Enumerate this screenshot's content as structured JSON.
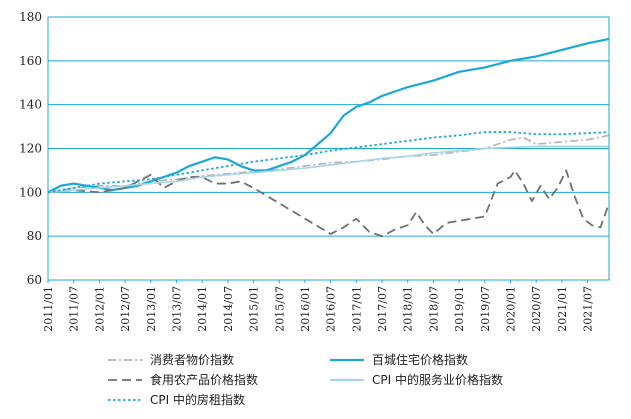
{
  "chart_data": {
    "type": "line",
    "title": "",
    "xlabel": "",
    "ylabel": "",
    "ylim": [
      60,
      180
    ],
    "yticks": [
      60,
      80,
      100,
      120,
      140,
      160,
      180
    ],
    "x_tick_labels": [
      "2011/01",
      "2011/07",
      "2012/01",
      "2012/07",
      "2013/01",
      "2013/07",
      "2014/01",
      "2014/07",
      "2015/01",
      "2015/07",
      "2016/01",
      "2016/07",
      "2017/01",
      "2017/07",
      "2018/01",
      "2018/07",
      "2019/01",
      "2019/07",
      "2020/01",
      "2020/07",
      "2021/01",
      "2021/07"
    ],
    "x_start": "2011/01",
    "x_end": "2021/12",
    "grid": "horizontal",
    "legend": "bottom",
    "series": [
      {
        "name": "消费者物价指数",
        "color": "#b3b3b3",
        "style": "dashdot",
        "points": [
          [
            "2011/01",
            100
          ],
          [
            "2011/07",
            102
          ],
          [
            "2012/01",
            103
          ],
          [
            "2012/07",
            103
          ],
          [
            "2013/01",
            105
          ],
          [
            "2013/07",
            106
          ],
          [
            "2014/01",
            107.5
          ],
          [
            "2014/07",
            108.5
          ],
          [
            "2015/01",
            109.5
          ],
          [
            "2015/07",
            110.5
          ],
          [
            "2016/01",
            112
          ],
          [
            "2016/07",
            113.5
          ],
          [
            "2017/01",
            114
          ],
          [
            "2017/07",
            115
          ],
          [
            "2018/01",
            116.5
          ],
          [
            "2018/07",
            117
          ],
          [
            "2019/01",
            118.5
          ],
          [
            "2019/07",
            120
          ],
          [
            "2020/01",
            124
          ],
          [
            "2020/04",
            125
          ],
          [
            "2020/07",
            122
          ],
          [
            "2021/01",
            123
          ],
          [
            "2021/07",
            124
          ],
          [
            "2021/12",
            126
          ]
        ]
      },
      {
        "name": "百城住宅价格指数",
        "color": "#1ba8d8",
        "style": "solid",
        "points": [
          [
            "2011/01",
            100
          ],
          [
            "2011/04",
            103
          ],
          [
            "2011/07",
            104
          ],
          [
            "2011/10",
            103
          ],
          [
            "2012/01",
            102
          ],
          [
            "2012/04",
            101
          ],
          [
            "2012/07",
            102
          ],
          [
            "2012/10",
            103
          ],
          [
            "2013/01",
            105
          ],
          [
            "2013/07",
            109
          ],
          [
            "2013/10",
            112
          ],
          [
            "2014/01",
            114
          ],
          [
            "2014/04",
            116
          ],
          [
            "2014/07",
            115
          ],
          [
            "2014/10",
            112
          ],
          [
            "2015/01",
            110
          ],
          [
            "2015/04",
            110
          ],
          [
            "2015/07",
            112
          ],
          [
            "2015/10",
            114
          ],
          [
            "2016/01",
            117
          ],
          [
            "2016/04",
            122
          ],
          [
            "2016/07",
            127
          ],
          [
            "2016/10",
            135
          ],
          [
            "2017/01",
            139
          ],
          [
            "2017/04",
            141
          ],
          [
            "2017/07",
            144
          ],
          [
            "2017/10",
            146
          ],
          [
            "2018/01",
            148
          ],
          [
            "2018/07",
            151
          ],
          [
            "2019/01",
            155
          ],
          [
            "2019/07",
            157
          ],
          [
            "2020/01",
            160
          ],
          [
            "2020/04",
            161
          ],
          [
            "2020/07",
            162
          ],
          [
            "2021/01",
            165
          ],
          [
            "2021/07",
            168
          ],
          [
            "2021/12",
            170
          ]
        ]
      },
      {
        "name": "食用农产品价格指数",
        "color": "#707070",
        "style": "dashed",
        "points": [
          [
            "2011/01",
            100
          ],
          [
            "2011/07",
            101
          ],
          [
            "2012/01",
            100
          ],
          [
            "2012/07",
            102
          ],
          [
            "2013/01",
            108
          ],
          [
            "2013/04",
            102
          ],
          [
            "2013/07",
            105
          ],
          [
            "2013/10",
            107
          ],
          [
            "2014/01",
            107
          ],
          [
            "2014/04",
            104
          ],
          [
            "2014/07",
            104
          ],
          [
            "2014/10",
            105
          ],
          [
            "2015/01",
            102
          ],
          [
            "2016/07",
            81
          ],
          [
            "2016/10",
            84
          ],
          [
            "2017/01",
            88
          ],
          [
            "2017/04",
            82
          ],
          [
            "2017/07",
            80
          ],
          [
            "2017/10",
            83
          ],
          [
            "2018/01",
            85
          ],
          [
            "2018/03",
            91
          ],
          [
            "2018/05",
            85
          ],
          [
            "2018/07",
            81
          ],
          [
            "2018/10",
            86
          ],
          [
            "2019/01",
            87
          ],
          [
            "2019/04",
            88
          ],
          [
            "2019/07",
            89
          ],
          [
            "2019/10",
            104
          ],
          [
            "2020/01",
            107
          ],
          [
            "2020/02",
            110
          ],
          [
            "2020/04",
            104
          ],
          [
            "2020/06",
            96
          ],
          [
            "2020/08",
            103
          ],
          [
            "2020/10",
            97
          ],
          [
            "2020/12",
            102
          ],
          [
            "2021/02",
            110
          ],
          [
            "2021/04",
            98
          ],
          [
            "2021/06",
            88
          ],
          [
            "2021/08",
            85
          ],
          [
            "2021/10",
            84
          ],
          [
            "2021/12",
            95
          ]
        ]
      },
      {
        "name": "CPI 中的服务业价格指数",
        "color": "#a6d5ea",
        "style": "solid",
        "points": [
          [
            "2011/01",
            100
          ],
          [
            "2011/07",
            101
          ],
          [
            "2012/01",
            102
          ],
          [
            "2012/07",
            103
          ],
          [
            "2013/01",
            104
          ],
          [
            "2013/07",
            105
          ],
          [
            "2014/01",
            107
          ],
          [
            "2014/07",
            108
          ],
          [
            "2015/01",
            109
          ],
          [
            "2015/07",
            110
          ],
          [
            "2016/01",
            111
          ],
          [
            "2016/07",
            112.5
          ],
          [
            "2017/01",
            114
          ],
          [
            "2017/07",
            115.5
          ],
          [
            "2018/01",
            116.5
          ],
          [
            "2018/07",
            118
          ],
          [
            "2019/01",
            119
          ],
          [
            "2019/07",
            120
          ],
          [
            "2020/01",
            120.5
          ],
          [
            "2020/07",
            121
          ],
          [
            "2021/01",
            121
          ],
          [
            "2021/07",
            121
          ],
          [
            "2021/12",
            121
          ]
        ]
      },
      {
        "name": "CPI 中的房租指数",
        "color": "#1ba8d8",
        "style": "dotted",
        "points": [
          [
            "2011/01",
            100
          ],
          [
            "2011/07",
            102
          ],
          [
            "2012/01",
            104
          ],
          [
            "2012/07",
            105
          ],
          [
            "2013/01",
            106
          ],
          [
            "2013/07",
            108
          ],
          [
            "2014/01",
            110
          ],
          [
            "2014/07",
            112
          ],
          [
            "2015/01",
            114
          ],
          [
            "2015/07",
            115.5
          ],
          [
            "2016/01",
            117
          ],
          [
            "2016/07",
            119
          ],
          [
            "2017/01",
            120.5
          ],
          [
            "2017/07",
            122
          ],
          [
            "2018/01",
            123.5
          ],
          [
            "2018/07",
            125
          ],
          [
            "2019/01",
            126
          ],
          [
            "2019/07",
            127.5
          ],
          [
            "2020/01",
            127.5
          ],
          [
            "2020/07",
            126.5
          ],
          [
            "2021/01",
            126.5
          ],
          [
            "2021/07",
            127
          ],
          [
            "2021/12",
            127.5
          ]
        ]
      }
    ]
  }
}
